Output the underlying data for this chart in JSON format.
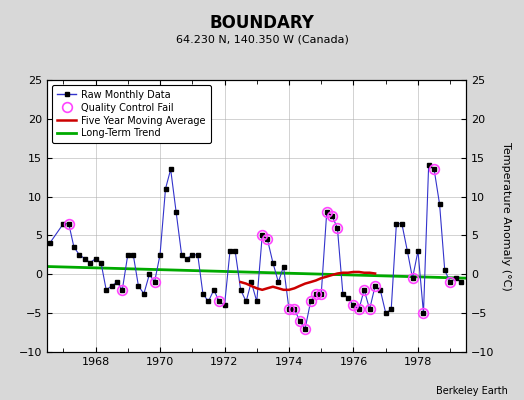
{
  "title": "BOUNDARY",
  "subtitle": "64.230 N, 140.350 W (Canada)",
  "ylabel": "Temperature Anomaly (°C)",
  "credit": "Berkeley Earth",
  "ylim": [
    -10,
    25
  ],
  "yticks": [
    -10,
    -5,
    0,
    5,
    10,
    15,
    20,
    25
  ],
  "xlim": [
    1966.5,
    1979.5
  ],
  "bg_color": "#d8d8d8",
  "plot_bg_color": "#ffffff",
  "raw_color": "#3333cc",
  "raw_marker_color": "#000000",
  "qc_color": "#ff44ff",
  "ma_color": "#cc0000",
  "trend_color": "#00aa00",
  "raw_x": [
    1966.58,
    1967.0,
    1967.17,
    1967.33,
    1967.5,
    1967.67,
    1967.83,
    1968.0,
    1968.17,
    1968.33,
    1968.5,
    1968.67,
    1968.83,
    1969.0,
    1969.17,
    1969.33,
    1969.5,
    1969.67,
    1969.83,
    1970.0,
    1970.17,
    1970.33,
    1970.5,
    1970.67,
    1970.83,
    1971.0,
    1971.17,
    1971.33,
    1971.5,
    1971.67,
    1971.83,
    1972.0,
    1972.17,
    1972.33,
    1972.5,
    1972.67,
    1972.83,
    1973.0,
    1973.17,
    1973.33,
    1973.5,
    1973.67,
    1973.83,
    1974.0,
    1974.17,
    1974.33,
    1974.5,
    1974.67,
    1974.83,
    1975.0,
    1975.17,
    1975.33,
    1975.5,
    1975.67,
    1975.83,
    1976.0,
    1976.17,
    1976.33,
    1976.5,
    1976.67,
    1976.83,
    1977.0,
    1977.17,
    1977.33,
    1977.5,
    1977.67,
    1977.83,
    1978.0,
    1978.17,
    1978.33,
    1978.5,
    1978.67,
    1978.83,
    1979.0,
    1979.17,
    1979.33
  ],
  "raw_y": [
    4.0,
    6.5,
    6.5,
    3.5,
    2.5,
    2.0,
    1.5,
    2.0,
    1.5,
    -2.0,
    -1.5,
    -1.0,
    -2.0,
    2.5,
    2.5,
    -1.5,
    -2.5,
    0.0,
    -1.0,
    2.5,
    11.0,
    13.5,
    8.0,
    2.5,
    2.0,
    2.5,
    2.5,
    -2.5,
    -3.5,
    -2.0,
    -3.5,
    -4.0,
    3.0,
    3.0,
    -2.0,
    -3.5,
    -1.0,
    -3.5,
    5.0,
    4.5,
    1.5,
    -1.0,
    1.0,
    -4.5,
    -4.5,
    -6.0,
    -7.0,
    -3.5,
    -2.5,
    -2.5,
    8.0,
    7.5,
    6.0,
    -2.5,
    -3.0,
    -4.0,
    -4.5,
    -2.0,
    -4.5,
    -1.5,
    -2.0,
    -5.0,
    -4.5,
    6.5,
    6.5,
    3.0,
    -0.5,
    3.0,
    -5.0,
    14.0,
    13.5,
    9.0,
    0.5,
    -1.0,
    -0.5,
    -1.0
  ],
  "qc_fail_x": [
    1967.17,
    1968.83,
    1969.83,
    1971.83,
    1973.17,
    1973.33,
    1974.0,
    1974.17,
    1974.33,
    1974.5,
    1974.67,
    1974.83,
    1975.0,
    1975.17,
    1975.33,
    1975.5,
    1976.0,
    1976.17,
    1976.33,
    1976.5,
    1976.67,
    1977.83,
    1978.17,
    1978.5,
    1979.0
  ],
  "qc_fail_y": [
    6.5,
    -2.0,
    -1.0,
    -3.5,
    5.0,
    4.5,
    -4.5,
    -4.5,
    -6.0,
    -7.0,
    -3.5,
    -2.5,
    -2.5,
    8.0,
    7.5,
    6.0,
    -4.0,
    -4.5,
    -2.0,
    -4.5,
    -1.5,
    -0.5,
    -5.0,
    13.5,
    -1.0
  ],
  "ma_x": [
    1972.5,
    1972.67,
    1972.83,
    1973.0,
    1973.17,
    1973.33,
    1973.5,
    1973.67,
    1973.83,
    1974.0,
    1974.17,
    1974.33,
    1974.5,
    1974.67,
    1974.83,
    1975.0,
    1975.17,
    1975.33,
    1975.5,
    1975.67,
    1975.83,
    1976.0,
    1976.17,
    1976.33,
    1976.5,
    1976.67
  ],
  "ma_y": [
    -1.0,
    -1.2,
    -1.5,
    -1.8,
    -2.0,
    -1.8,
    -1.6,
    -1.8,
    -2.0,
    -2.0,
    -1.8,
    -1.5,
    -1.2,
    -1.0,
    -0.8,
    -0.5,
    -0.3,
    -0.1,
    0.1,
    0.2,
    0.2,
    0.3,
    0.3,
    0.2,
    0.2,
    0.1
  ],
  "trend_x": [
    1966.5,
    1979.5
  ],
  "trend_y": [
    1.0,
    -0.5
  ],
  "xtick_labels": [
    "1968",
    "1970",
    "1972",
    "1974",
    "1976",
    "1978"
  ],
  "xtick_positions": [
    1968,
    1970,
    1972,
    1974,
    1976,
    1978
  ]
}
